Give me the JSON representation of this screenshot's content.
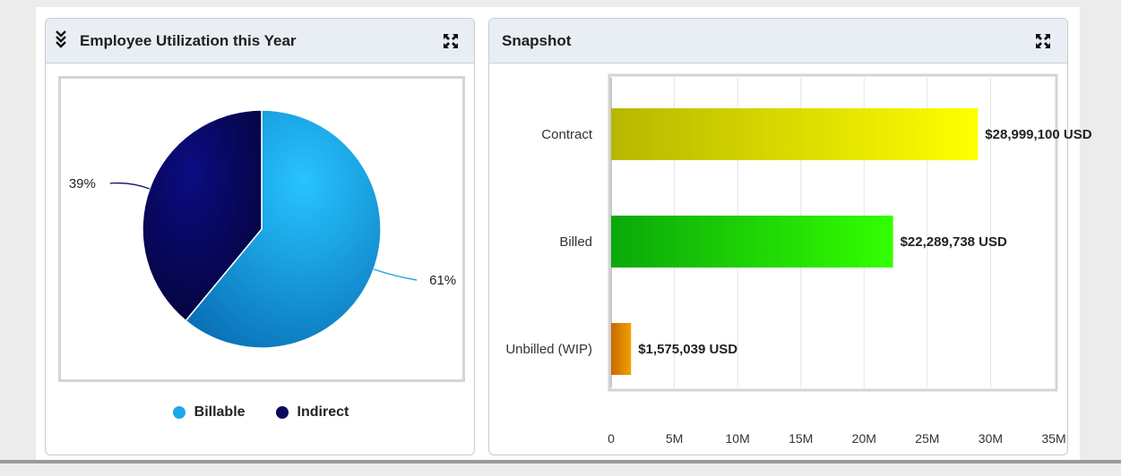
{
  "utilization_widget": {
    "title": "Employee Utilization this Year",
    "collapse_icon": "double-chevron-down-icon",
    "expand_icon": "expand-icon",
    "chart_data": {
      "type": "pie",
      "title": "",
      "slices": [
        {
          "name": "Billable",
          "value": 61,
          "label": "61%",
          "color": "#1a9fe0"
        },
        {
          "name": "Indirect",
          "value": 39,
          "label": "39%",
          "color": "#0a0a6e"
        }
      ],
      "legend": "bottom"
    },
    "legend": [
      {
        "label": "Billable",
        "color": "#1aa8e8"
      },
      {
        "label": "Indirect",
        "color": "#0b0b5c"
      }
    ]
  },
  "snapshot_widget": {
    "title": "Snapshot",
    "expand_icon": "expand-icon",
    "chart_data": {
      "type": "bar",
      "orientation": "horizontal",
      "title": "",
      "xlabel": "",
      "ylabel": "",
      "categories": [
        "Contract",
        "Billed",
        "Unbilled (WIP)"
      ],
      "values": [
        28999100,
        22289738,
        1575039
      ],
      "data_labels": [
        "$28,999,100 USD",
        "$22,289,738 USD",
        "$1,575,039 USD"
      ],
      "colors": [
        "#e6e600",
        "#22dd00",
        "#e08a00"
      ],
      "xlim": [
        0,
        35000000
      ],
      "x_ticks": [
        0,
        5000000,
        10000000,
        15000000,
        20000000,
        25000000,
        30000000,
        35000000
      ],
      "x_tick_labels": [
        "0",
        "5M",
        "10M",
        "15M",
        "20M",
        "25M",
        "30M",
        "35M"
      ],
      "grid": true
    }
  }
}
